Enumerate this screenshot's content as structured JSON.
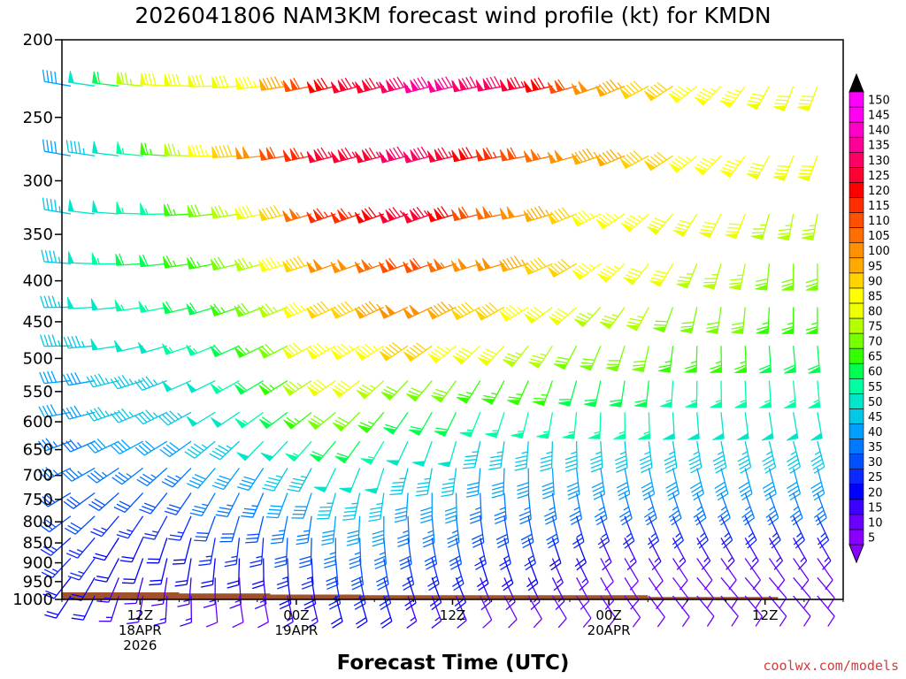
{
  "chart_data": {
    "type": "wind-barb-profile",
    "title": "2026041806 NAM3KM forecast wind profile (kt) for KMDN",
    "xlabel": "Forecast Time (UTC)",
    "ylabel": "",
    "credit": "coolwx.com/models",
    "y_axis": {
      "unit": "hPa",
      "scale": "log",
      "range": [
        200,
        1000
      ],
      "ticks": [
        "200",
        "250",
        "300",
        "350",
        "400",
        "450",
        "500",
        "550",
        "600",
        "650",
        "700",
        "750",
        "800",
        "850",
        "900",
        "950",
        "1000"
      ]
    },
    "x_axis": {
      "unit": "forecast hour",
      "range": [
        0,
        60
      ],
      "ticks": [
        {
          "hour": 6,
          "label": "12Z",
          "date": "18APR",
          "year": "2026"
        },
        {
          "hour": 18,
          "label": "00Z",
          "date": "19APR",
          "year": ""
        },
        {
          "hour": 30,
          "label": "12Z",
          "date": "",
          "year": ""
        },
        {
          "hour": 42,
          "label": "00Z",
          "date": "20APR",
          "year": ""
        },
        {
          "hour": 54,
          "label": "12Z",
          "date": "",
          "year": ""
        }
      ]
    },
    "colorbar": {
      "unit": "kt",
      "levels": [
        "5",
        "10",
        "15",
        "20",
        "25",
        "30",
        "35",
        "40",
        "45",
        "50",
        "55",
        "60",
        "65",
        "70",
        "75",
        "80",
        "85",
        "90",
        "95",
        "100",
        "105",
        "110",
        "115",
        "120",
        "125",
        "130",
        "135",
        "140",
        "145",
        "150"
      ],
      "colors": [
        "#8a00ff",
        "#6a00ff",
        "#3c00ff",
        "#0000ff",
        "#0a28ff",
        "#0050ff",
        "#0078ff",
        "#00a0ff",
        "#00c8e6",
        "#00e6c8",
        "#00ffa0",
        "#00ff50",
        "#32ff00",
        "#78ff00",
        "#b4ff00",
        "#f0ff00",
        "#ffff00",
        "#ffd200",
        "#ffaa00",
        "#ff9100",
        "#ff6e00",
        "#ff5000",
        "#ff2d00",
        "#ff0000",
        "#ff0032",
        "#ff0064",
        "#ff0096",
        "#ff00c8",
        "#ff00f0",
        "#ff00ff"
      ]
    },
    "surface": [
      {
        "hour": 0,
        "pressure": 980
      },
      {
        "hour": 9,
        "pressure": 980
      },
      {
        "hour": 9,
        "pressure": 983
      },
      {
        "hour": 16,
        "pressure": 983
      },
      {
        "hour": 16,
        "pressure": 986
      },
      {
        "hour": 23,
        "pressure": 986
      },
      {
        "hour": 23,
        "pressure": 988
      },
      {
        "hour": 45,
        "pressure": 988
      },
      {
        "hour": 45,
        "pressure": 993
      },
      {
        "hour": 55,
        "pressure": 993
      },
      {
        "hour": 55,
        "pressure": 998
      },
      {
        "hour": 60,
        "pressure": 998
      }
    ],
    "levels_hPa": [
      225,
      275,
      325,
      375,
      425,
      475,
      525,
      575,
      625,
      675,
      725,
      775,
      825,
      875,
      925,
      975
    ],
    "time_samples": [
      0,
      7,
      14,
      21,
      28,
      35,
      42,
      49,
      56
    ],
    "wind_speed_kt": [
      [
        35,
        80,
        80,
        120,
        135,
        130,
        95,
        85,
        80
      ],
      [
        40,
        60,
        95,
        125,
        130,
        110,
        95,
        85,
        80
      ],
      [
        45,
        55,
        75,
        115,
        125,
        100,
        85,
        80,
        75
      ],
      [
        45,
        60,
        70,
        100,
        110,
        95,
        85,
        75,
        70
      ],
      [
        45,
        55,
        65,
        90,
        100,
        85,
        75,
        70,
        65
      ],
      [
        45,
        50,
        60,
        85,
        90,
        75,
        70,
        65,
        60
      ],
      [
        40,
        45,
        55,
        80,
        70,
        65,
        60,
        55,
        55
      ],
      [
        40,
        45,
        50,
        70,
        60,
        55,
        55,
        50,
        50
      ],
      [
        35,
        40,
        45,
        60,
        50,
        45,
        45,
        45,
        45
      ],
      [
        35,
        35,
        40,
        50,
        45,
        40,
        40,
        40,
        40
      ],
      [
        30,
        30,
        35,
        45,
        40,
        35,
        35,
        35,
        35
      ],
      [
        30,
        25,
        30,
        40,
        35,
        30,
        25,
        25,
        25
      ],
      [
        25,
        20,
        25,
        35,
        30,
        25,
        15,
        15,
        15
      ],
      [
        25,
        20,
        20,
        30,
        25,
        20,
        10,
        10,
        10
      ],
      [
        20,
        15,
        15,
        25,
        20,
        15,
        10,
        10,
        10
      ],
      [
        20,
        15,
        10,
        20,
        15,
        10,
        10,
        10,
        10
      ]
    ],
    "wind_dir_deg": [
      [
        280,
        275,
        265,
        255,
        255,
        260,
        250,
        230,
        200
      ],
      [
        280,
        275,
        265,
        255,
        255,
        260,
        250,
        230,
        200
      ],
      [
        280,
        270,
        260,
        250,
        250,
        260,
        240,
        210,
        190
      ],
      [
        275,
        265,
        255,
        250,
        250,
        255,
        230,
        200,
        180
      ],
      [
        270,
        260,
        250,
        245,
        245,
        240,
        220,
        190,
        180
      ],
      [
        270,
        255,
        245,
        240,
        235,
        220,
        200,
        180,
        175
      ],
      [
        265,
        250,
        240,
        235,
        220,
        205,
        190,
        180,
        175
      ],
      [
        260,
        245,
        235,
        230,
        210,
        195,
        180,
        175,
        170
      ],
      [
        250,
        240,
        225,
        220,
        200,
        185,
        175,
        170,
        165
      ],
      [
        245,
        230,
        215,
        205,
        190,
        180,
        170,
        165,
        165
      ],
      [
        240,
        220,
        205,
        195,
        180,
        175,
        165,
        160,
        160
      ],
      [
        235,
        210,
        195,
        185,
        175,
        170,
        160,
        155,
        155
      ],
      [
        230,
        200,
        185,
        180,
        170,
        165,
        155,
        150,
        150
      ],
      [
        225,
        195,
        180,
        175,
        165,
        160,
        150,
        145,
        145
      ],
      [
        220,
        190,
        175,
        170,
        160,
        155,
        150,
        140,
        140
      ],
      [
        215,
        185,
        170,
        165,
        160,
        150,
        145,
        140,
        140
      ]
    ]
  }
}
